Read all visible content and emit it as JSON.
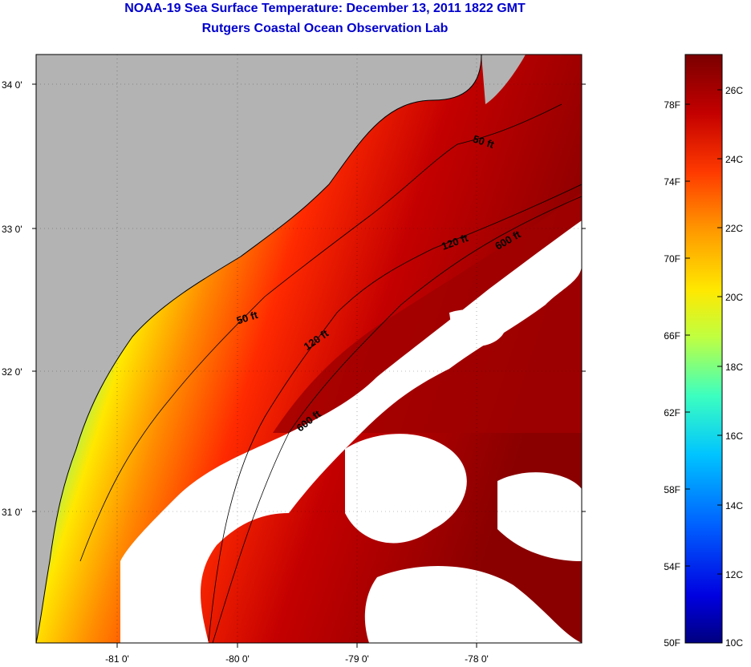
{
  "title": "NOAA-19 Sea Surface Temperature:  December 13, 2011 1822 GMT",
  "subtitle": "Rutgers Coastal Ocean Observation Lab",
  "axes": {
    "lat_ticks": [
      "34 0'",
      "33 0'",
      "32 0'",
      "31 0'"
    ],
    "lon_ticks": [
      "-81 0'",
      "-80 0'",
      "-79 0'",
      "-78 0'"
    ]
  },
  "isobaths": [
    {
      "id": "iso-50-north",
      "label": "50 ft"
    },
    {
      "id": "iso-120-north",
      "label": "120 ft"
    },
    {
      "id": "iso-600-north",
      "label": "600 ft"
    },
    {
      "id": "iso-50-mid",
      "label": "50 ft"
    },
    {
      "id": "iso-120-mid",
      "label": "120 ft"
    },
    {
      "id": "iso-600-mid",
      "label": "600 ft"
    }
  ],
  "colorbar": {
    "fahrenheit_labels": [
      "78F",
      "74F",
      "70F",
      "66F",
      "62F",
      "58F",
      "54F",
      "50F"
    ],
    "celsius_labels": [
      "26C",
      "24C",
      "22C",
      "20C",
      "18C",
      "16C",
      "14C",
      "12C",
      "10C"
    ],
    "colors": [
      "#7a0000",
      "#9a0000",
      "#c40000",
      "#e61500",
      "#ff3a00",
      "#ff6a00",
      "#ff9a00",
      "#ffc400",
      "#ffe800",
      "#e0ff1a",
      "#a8ff50",
      "#70ff88",
      "#3cffc0",
      "#0cf0f0",
      "#00c4ff",
      "#0090ff",
      "#0060ff",
      "#0030ff",
      "#0000e0",
      "#0000a8",
      "#000080"
    ]
  },
  "legend_colors": {
    "land": "#b3b3b3",
    "cloud": "#ffffff"
  }
}
